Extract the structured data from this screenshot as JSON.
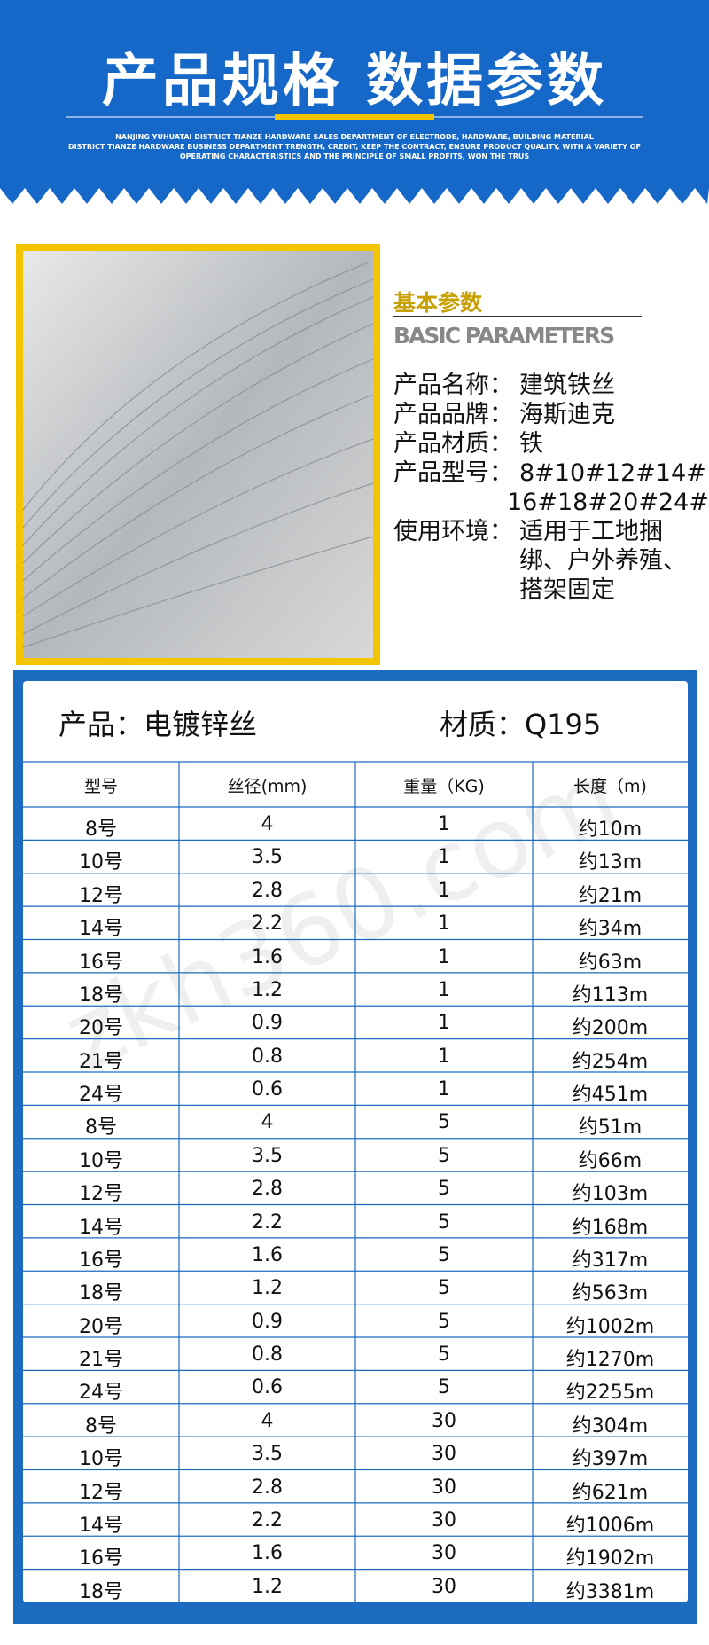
{
  "header": {
    "title": "产品规格 数据参数",
    "subtitle": [
      "NANJING YUHUATAI DISTRICT TIANZE HARDWARE SALES DEPARTMENT OF ELECTRODE, HARDWARE, BUILDING MATERIAL",
      "DISTRICT TIANZE HARDWARE BUSINESS DEPARTMENT TRENGTH, CREDIT, KEEP THE CONTRACT, ENSURE PRODUCT QUALITY, WITH A VARIETY OF",
      "OPERATING CHARACTERISTICS AND THE PRINCIPLE OF SMALL PROFITS, WON THE TRUS"
    ]
  },
  "params": {
    "heading": "基本参数",
    "heading_en": "BASIC PARAMETERS",
    "items": [
      {
        "label": "产品名称：",
        "value": [
          "建筑铁丝"
        ]
      },
      {
        "label": "产品品牌：",
        "value": [
          "海斯迪克"
        ]
      },
      {
        "label": "产品材质：",
        "value": [
          "铁"
        ]
      },
      {
        "label": "产品型号：",
        "value": [
          "8#10#12#14#",
          "16#18#20#24#"
        ]
      },
      {
        "label": "使用环境：",
        "value": [
          "适用于工地捆",
          "绑、户外养殖、",
          "搭架固定"
        ]
      }
    ]
  },
  "table": {
    "product": "产品：电镀锌丝",
    "material": "材质：Q195",
    "watermark": "zkh360.com",
    "columns": [
      "型号",
      "丝径(mm)",
      "重量（KG)",
      "长度（m)"
    ],
    "rows": [
      [
        "8号",
        "4",
        "1",
        "约10m"
      ],
      [
        "10号",
        "3.5",
        "1",
        "约13m"
      ],
      [
        "12号",
        "2.8",
        "1",
        "约21m"
      ],
      [
        "14号",
        "2.2",
        "1",
        "约34m"
      ],
      [
        "16号",
        "1.6",
        "1",
        "约63m"
      ],
      [
        "18号",
        "1.2",
        "1",
        "约113m"
      ],
      [
        "20号",
        "0.9",
        "1",
        "约200m"
      ],
      [
        "21号",
        "0.8",
        "1",
        "约254m"
      ],
      [
        "24号",
        "0.6",
        "1",
        "约451m"
      ],
      [
        "8号",
        "4",
        "5",
        "约51m"
      ],
      [
        "10号",
        "3.5",
        "5",
        "约66m"
      ],
      [
        "12号",
        "2.8",
        "5",
        "约103m"
      ],
      [
        "14号",
        "2.2",
        "5",
        "约168m"
      ],
      [
        "16号",
        "1.6",
        "5",
        "约317m"
      ],
      [
        "18号",
        "1.2",
        "5",
        "约563m"
      ],
      [
        "20号",
        "0.9",
        "5",
        "约1002m"
      ],
      [
        "21号",
        "0.8",
        "5",
        "约1270m"
      ],
      [
        "24号",
        "0.6",
        "5",
        "约2255m"
      ],
      [
        "8号",
        "4",
        "30",
        "约304m"
      ],
      [
        "10号",
        "3.5",
        "30",
        "约397m"
      ],
      [
        "12号",
        "2.8",
        "30",
        "约621m"
      ],
      [
        "14号",
        "2.2",
        "30",
        "约1006m"
      ],
      [
        "16号",
        "1.6",
        "30",
        "约1902m"
      ],
      [
        "18号",
        "1.2",
        "30",
        "约3381m"
      ]
    ]
  }
}
